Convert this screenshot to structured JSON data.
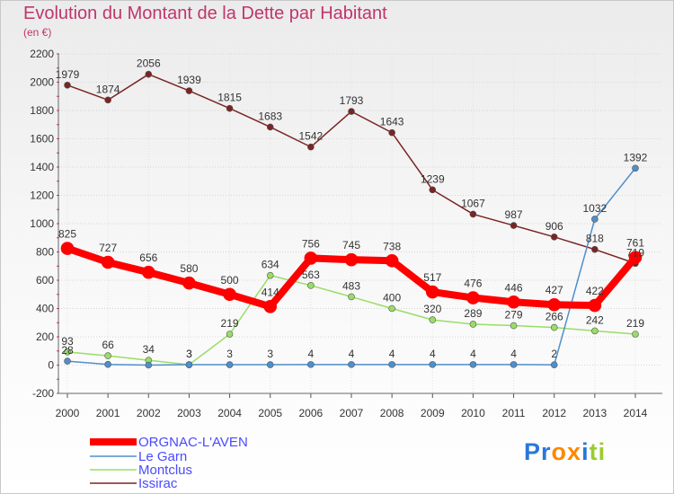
{
  "title": "Evolution du Montant de la Dette par Habitant",
  "subtitle": "(en €)",
  "logo_text": "Proxiti",
  "chart_data": {
    "type": "line",
    "title": "Evolution du Montant de la Dette par Habitant",
    "subtitle": "(en €)",
    "x": [
      "2000",
      "2001",
      "2002",
      "2003",
      "2004",
      "2005",
      "2006",
      "2007",
      "2008",
      "2009",
      "2010",
      "2011",
      "2012",
      "2013",
      "2014"
    ],
    "ylim": [
      -200,
      2200
    ],
    "yticks": [
      -200,
      0,
      200,
      400,
      600,
      800,
      1000,
      1200,
      1400,
      1600,
      1800,
      2000,
      2200
    ],
    "grid": true,
    "legend_position": "bottom-left",
    "series": [
      {
        "name": "ORGNAC-L'AVEN",
        "color": "#ff0000",
        "values": [
          825,
          727,
          656,
          580,
          500,
          414,
          756,
          745,
          738,
          517,
          476,
          446,
          427,
          422,
          761
        ]
      },
      {
        "name": "Le Garn",
        "color": "#4f8fca",
        "values": [
          28,
          5,
          0,
          3,
          3,
          3,
          4,
          4,
          4,
          4,
          4,
          4,
          2,
          1032,
          1392
        ]
      },
      {
        "name": "Montclus",
        "color": "#99dd66",
        "values": [
          93,
          66,
          34,
          3,
          219,
          634,
          563,
          483,
          400,
          320,
          289,
          279,
          266,
          242,
          219
        ]
      },
      {
        "name": "Issirac",
        "color": "#7a2424",
        "values": [
          1979,
          1874,
          2056,
          1939,
          1815,
          1683,
          1542,
          1793,
          1643,
          1239,
          1067,
          987,
          906,
          818,
          719
        ]
      }
    ],
    "point_labels": {
      "ORGNAC-L'AVEN": [
        "825",
        "727",
        "656",
        "580",
        "500",
        "414",
        "756",
        "745",
        "738",
        "517",
        "476",
        "446",
        "427",
        "422",
        "761"
      ],
      "Le Garn": [
        "28",
        "",
        "",
        "3",
        "3",
        "3",
        "4",
        "4",
        "4",
        "4",
        "4",
        "4",
        "2",
        "1032",
        "1392"
      ],
      "Montclus": [
        "93",
        "66",
        "34",
        "3",
        "219",
        "634",
        "563",
        "483",
        "400",
        "320",
        "289",
        "279",
        "266",
        "242",
        "219"
      ],
      "Issirac": [
        "1979",
        "1874",
        "2056",
        "1939",
        "1815",
        "1683",
        "1542",
        "1793",
        "1643",
        "1239",
        "1067",
        "987",
        "906",
        "818",
        "719"
      ]
    }
  }
}
